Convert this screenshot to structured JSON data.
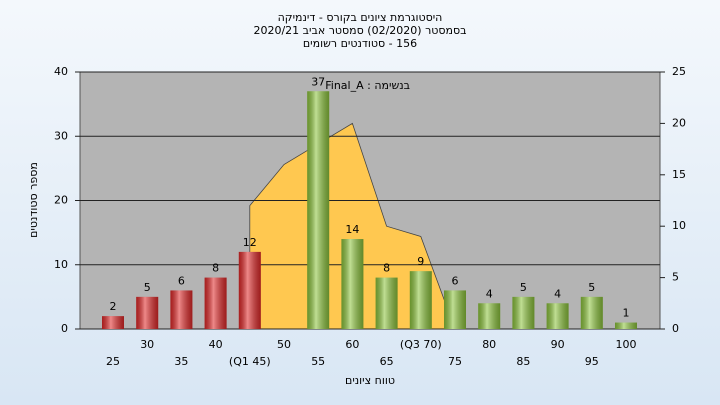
{
  "chart_data": {
    "type": "bar",
    "title": "היסטוגרמת ציונים בקורס - דינמיקה",
    "subtitle": "בסמסטר  (02/2020)  סמסטר אביב 2020/21",
    "subtitle2": "156 - סטודנטים רשומים",
    "annotation": "בנשימה : Final_A",
    "ylabel": "מספר סטודנטים",
    "xlabel": "טווח ציונים",
    "categories": [
      "25",
      "30",
      "35",
      "40",
      "(Q1 45)",
      "50",
      "55",
      "60",
      "65",
      "(Q3 70)",
      "75",
      "80",
      "85",
      "90",
      "95",
      "100"
    ],
    "values": [
      2,
      5,
      6,
      8,
      12,
      null,
      37,
      14,
      8,
      9,
      6,
      4,
      5,
      4,
      5,
      1
    ],
    "bar_colors": [
      "#e02828",
      "#e02828",
      "#e02828",
      "#e02828",
      "#e02828",
      null,
      "#8cc43c",
      "#8cc43c",
      "#8cc43c",
      "#8cc43c",
      "#8cc43c",
      "#8cc43c",
      "#8cc43c",
      "#8cc43c",
      "#8cc43c",
      "#8cc43c"
    ],
    "area": {
      "axis": "y2",
      "color": "#ffc850",
      "values": [
        null,
        null,
        null,
        null,
        12,
        16,
        18,
        20,
        10,
        9,
        0,
        null,
        null,
        null,
        null,
        null
      ]
    },
    "ylim": [
      0,
      40
    ],
    "yticks": [
      0,
      10,
      20,
      30,
      40
    ],
    "y2lim": [
      0,
      25
    ],
    "y2ticks": [
      0,
      5,
      10,
      15,
      20,
      25
    ],
    "grid": true
  }
}
